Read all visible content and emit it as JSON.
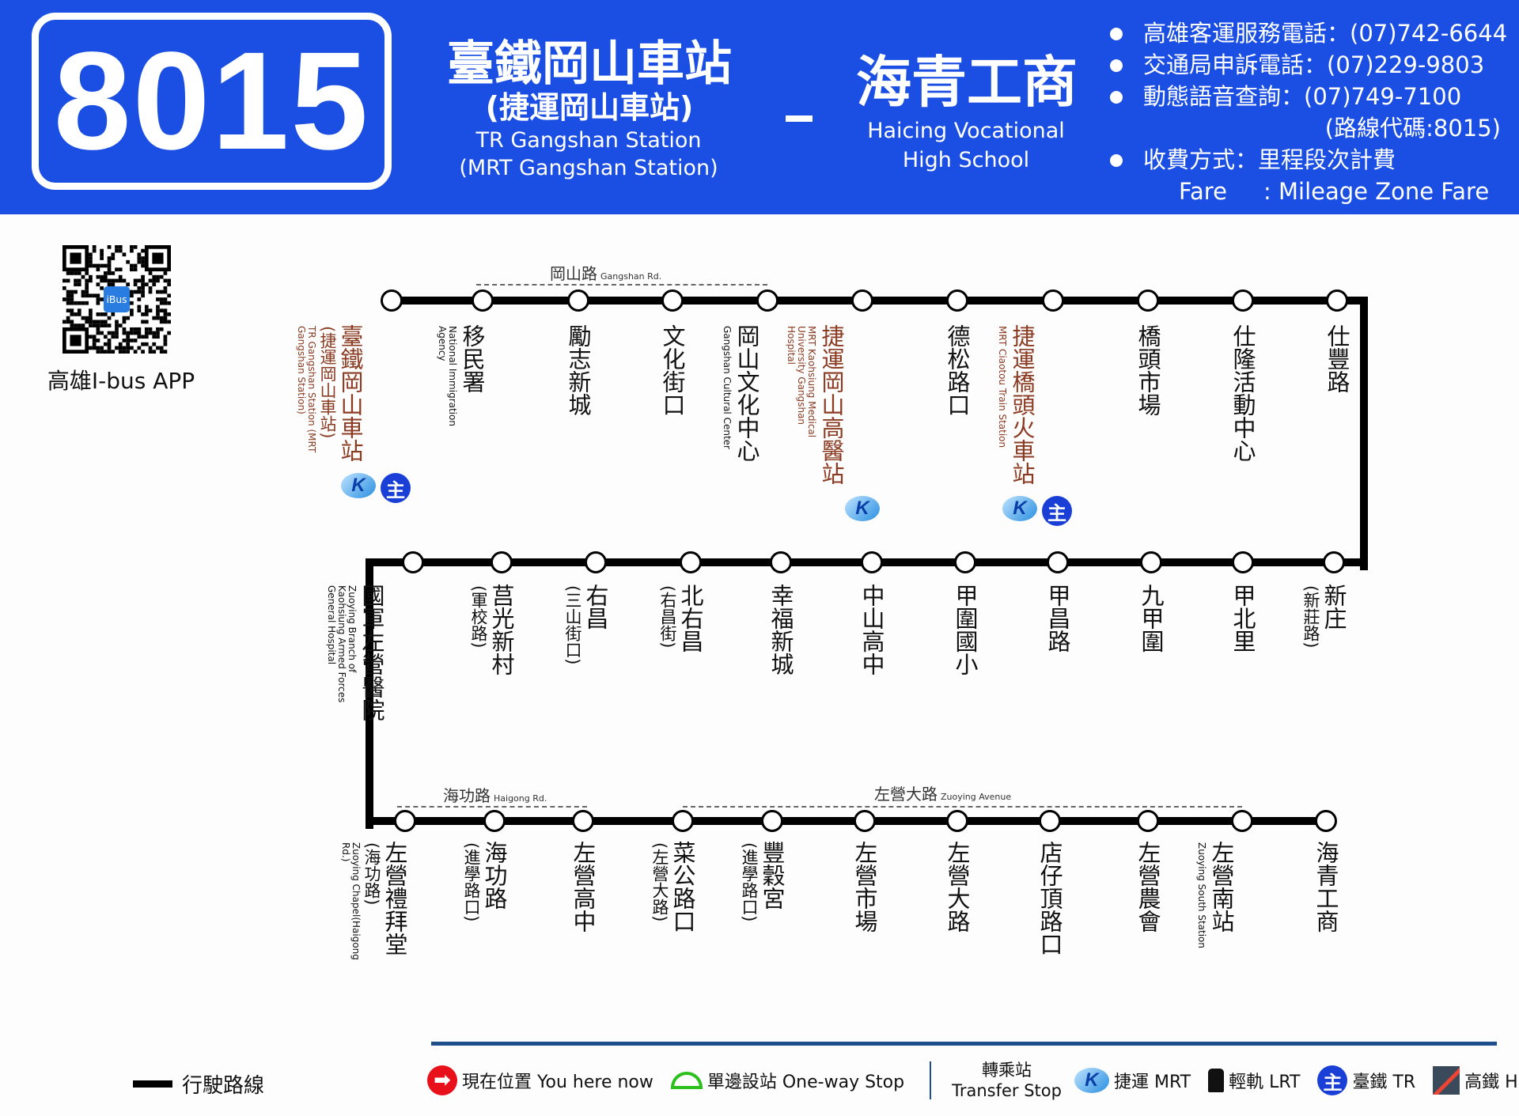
{
  "header": {
    "route_number": "8015",
    "origin_zh": "臺鐵岡山車站",
    "origin_zh2": "(捷運岡山車站)",
    "origin_en1": "TR  Gangshan Station",
    "origin_en2": "(MRT Gangshan Station)",
    "separator": "-",
    "dest_zh": "海青工商",
    "dest_en1": "Haicing Vocational",
    "dest_en2": "High School",
    "background_color": "#1b4fe3"
  },
  "info": {
    "service_phone": "高雄客運服務電話：(07)742-6644",
    "complaint_phone": "交通局申訴電話：(07)229-9803",
    "voice_query": "動態語音查詢：(07)749-7100",
    "route_code": "(路線代碼:8015)",
    "fare_zh": "收費方式：里程段次計費",
    "fare_en": "Fare     : Mileage Zone Fare"
  },
  "app": {
    "label": "高雄I-bus APP",
    "qr_badge": "iBus"
  },
  "roads": [
    {
      "zh": "岡山路",
      "en": "Gangshan Rd."
    },
    {
      "zh": "海功路",
      "en": "Haigong Rd."
    },
    {
      "zh": "左營大路",
      "en": "Zuoying Avenue"
    }
  ],
  "stops": [
    {
      "name": "臺鐵岡山車站",
      "sub": "(捷運岡山車站)",
      "en": "TR Gangshan Station (MRT Gangshan Station)",
      "transfer": [
        "mrt",
        "tr"
      ]
    },
    {
      "name": "移民署",
      "en": "National Immigration Agency"
    },
    {
      "name": "勵志新城"
    },
    {
      "name": "文化街口"
    },
    {
      "name": "岡山文化中心",
      "en": "Gangshan Cultural Center"
    },
    {
      "name": "捷運岡山高醫站",
      "en": "MRT Kaohsiung Medical University Gangshan Hospital",
      "transfer": [
        "mrt"
      ]
    },
    {
      "name": "德松路口"
    },
    {
      "name": "捷運橋頭火車站",
      "en": "MRT Ciaotou Train Station",
      "transfer": [
        "mrt",
        "tr"
      ]
    },
    {
      "name": "橋頭市場"
    },
    {
      "name": "仕隆活動中心"
    },
    {
      "name": "仕豐路"
    },
    {
      "name": "新庄",
      "sub": "(新莊路)"
    },
    {
      "name": "甲北里"
    },
    {
      "name": "九甲圍"
    },
    {
      "name": "甲昌路"
    },
    {
      "name": "甲圍國小"
    },
    {
      "name": "中山高中"
    },
    {
      "name": "幸福新城"
    },
    {
      "name": "北右昌",
      "sub": "(右昌街)"
    },
    {
      "name": "右昌",
      "sub": "(三山街口)"
    },
    {
      "name": "莒光新村",
      "sub": "(軍校路)"
    },
    {
      "name": "國軍左營醫院",
      "en": "Zuoying Branch of Kaohsiung Armed Forces General Hospital"
    },
    {
      "name": "左營禮拜堂",
      "sub": "(海功路)",
      "en": "Zuoying Chapel(Haigong Rd.)"
    },
    {
      "name": "海功路",
      "sub": "(進學路口)"
    },
    {
      "name": "左營高中"
    },
    {
      "name": "菜公路口",
      "sub": "(左營大路)"
    },
    {
      "name": "豐穀宮",
      "sub": "(進學路口)"
    },
    {
      "name": "左營市場"
    },
    {
      "name": "左營大路"
    },
    {
      "name": "店仔頂路口"
    },
    {
      "name": "左營農會"
    },
    {
      "name": "左營南站",
      "en": "Zuoying South Station"
    },
    {
      "name": "海青工商"
    }
  ],
  "legend": {
    "route_line": "行駛路線",
    "you_here": "現在位置 You here now",
    "one_way": "單邊設站 One-way Stop",
    "transfer_zh": "轉乘站",
    "transfer_en": "Transfer Stop",
    "mrt": "捷運 MRT",
    "lrt": "輕軌 LRT",
    "tr": "臺鐵 TR",
    "hsr": "高鐵 HSR",
    "mrt_glyph": "K",
    "tr_glyph": "主",
    "here_glyph": "➡"
  },
  "colors": {
    "transfer_text": "#8a3b22",
    "line": "#000000",
    "legend_bar": "#1f4e8c"
  }
}
